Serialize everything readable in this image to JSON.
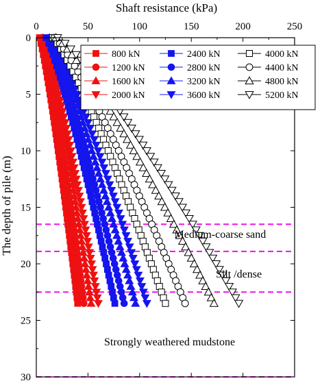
{
  "chart_data": {
    "type": "scatter",
    "xlabel": "Shaft resistance (kPa)",
    "ylabel": "The depth of pile (m)",
    "xlim": [
      0,
      250
    ],
    "ylim": [
      0,
      30
    ],
    "y_inverted": true,
    "x_axis_position": "top",
    "x_ticks": [
      0,
      50,
      100,
      150,
      200,
      250
    ],
    "y_ticks": [
      0,
      5,
      10,
      15,
      20,
      25,
      30
    ],
    "grid": false,
    "legend_placement": "top-right",
    "depths": [
      0,
      0.5,
      1.0,
      1.5,
      2.0,
      2.5,
      3.0,
      3.5,
      4.0,
      4.5,
      5.0,
      5.5,
      6.0,
      6.5,
      7.0,
      7.5,
      8.0,
      8.5,
      9.0,
      9.5,
      10.0,
      10.5,
      11.0,
      11.5,
      12.0,
      12.5,
      13.0,
      13.5,
      14.0,
      14.5,
      15.0,
      15.5,
      16.0,
      16.5,
      17.0,
      17.5,
      18.0,
      18.5,
      19.0,
      19.5,
      20.0,
      20.5,
      21.0,
      21.5,
      22.0,
      22.5,
      23.0,
      23.5
    ],
    "series": [
      {
        "name": "800 kN",
        "color": "#ee1111",
        "marker": "square",
        "filled": true,
        "end_value": 40
      },
      {
        "name": "1200 kN",
        "color": "#ee1111",
        "marker": "circle",
        "filled": true,
        "end_value": 46
      },
      {
        "name": "1600 kN",
        "color": "#ee1111",
        "marker": "triangle-up",
        "filled": true,
        "end_value": 53
      },
      {
        "name": "2000 kN",
        "color": "#ee1111",
        "marker": "triangle-down",
        "filled": true,
        "end_value": 60
      },
      {
        "name": "2400 kN",
        "color": "#1515ee",
        "marker": "square",
        "filled": true,
        "end_value": 76
      },
      {
        "name": "2800 kN",
        "color": "#1515ee",
        "marker": "circle",
        "filled": true,
        "end_value": 85
      },
      {
        "name": "3200 kN",
        "color": "#1515ee",
        "marker": "triangle-up",
        "filled": true,
        "end_value": 96
      },
      {
        "name": "3600 kN",
        "color": "#1515ee",
        "marker": "triangle-down",
        "filled": true,
        "end_value": 107
      },
      {
        "name": "4000 kN",
        "color": "#000000",
        "marker": "square",
        "filled": false,
        "end_value": 125
      },
      {
        "name": "4400 kN",
        "color": "#000000",
        "marker": "circle",
        "filled": false,
        "end_value": 144
      },
      {
        "name": "4800 kN",
        "color": "#000000",
        "marker": "triangle-up",
        "filled": false,
        "end_value": 172
      },
      {
        "name": "5200 kN",
        "color": "#000000",
        "marker": "triangle-down",
        "filled": false,
        "end_value": 196
      }
    ],
    "layer_boundaries": {
      "depths": [
        16.5,
        18.9,
        22.5,
        30
      ],
      "color": "#ee11ee"
    },
    "annotations": [
      {
        "text": "Medium-coarse sand",
        "x": 178,
        "y": 17.7
      },
      {
        "text": "Silt /dense",
        "x": 196,
        "y": 21.2
      },
      {
        "text": "Strongly weathered mudstone",
        "x": 129,
        "y": 27.2
      }
    ]
  }
}
